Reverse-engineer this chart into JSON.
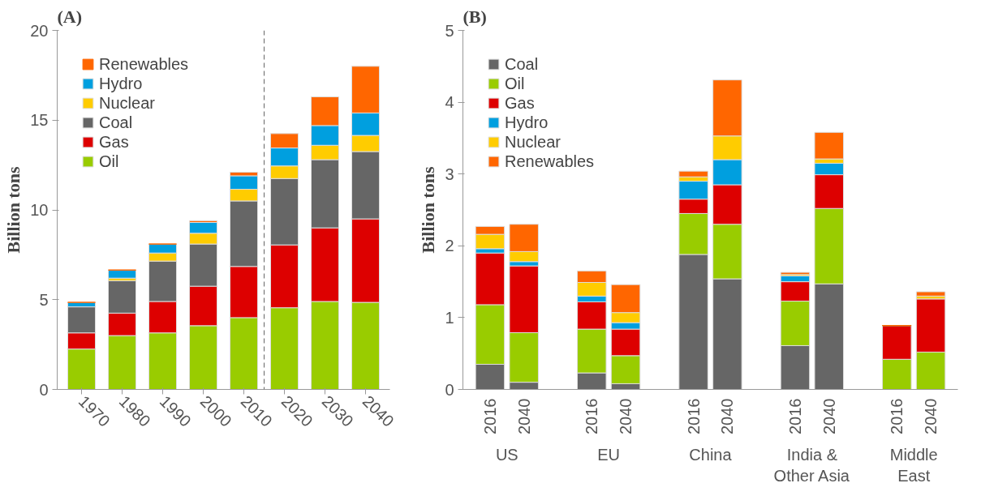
{
  "chart_data": [
    {
      "type": "bar",
      "title": "(A)",
      "ylabel": "Billion tons",
      "stacked": true,
      "x": [
        1970,
        1980,
        1990,
        2000,
        2010,
        2020,
        2030,
        2040
      ],
      "xlim": [
        1964,
        2046
      ],
      "xticks": [
        1970,
        1980,
        1990,
        2000,
        2010,
        2020,
        2030,
        2040
      ],
      "ylim": [
        0,
        20
      ],
      "yticks": [
        0,
        5,
        10,
        15,
        20
      ],
      "grid": false,
      "legend": "top left",
      "ref_lines": [
        {
          "axis": "x",
          "value": 2015,
          "color": "#666666",
          "line_style": "dashed"
        }
      ],
      "series": [
        {
          "name": "Oil",
          "color": "#99cc00",
          "values": [
            2.25,
            3.0,
            3.15,
            3.55,
            4.0,
            4.55,
            4.9,
            4.85
          ]
        },
        {
          "name": "Gas",
          "color": "#dd0000",
          "values": [
            0.9,
            1.25,
            1.75,
            2.2,
            2.85,
            3.5,
            4.1,
            4.65
          ]
        },
        {
          "name": "Coal",
          "color": "#666666",
          "values": [
            1.45,
            1.8,
            2.25,
            2.35,
            3.65,
            3.7,
            3.8,
            3.75
          ]
        },
        {
          "name": "Nuclear",
          "color": "#ffcc00",
          "values": [
            null,
            0.15,
            0.45,
            0.6,
            0.65,
            0.7,
            0.8,
            0.9
          ]
        },
        {
          "name": "Hydro",
          "color": "#009fdf",
          "values": [
            0.25,
            0.45,
            0.5,
            0.6,
            0.75,
            1.0,
            1.1,
            1.25
          ]
        },
        {
          "name": "Renewables",
          "color": "#ff6600",
          "values": [
            0,
            0,
            0,
            0.1,
            0.2,
            0.8,
            1.6,
            2.6
          ]
        }
      ]
    },
    {
      "type": "bar",
      "title": "(B)",
      "ylabel": "Billion tons",
      "stacked": true,
      "categories": [
        "2016",
        "2040",
        "2016",
        "2040",
        "2016",
        "2040",
        "2016",
        "2040",
        "2016",
        "2040"
      ],
      "annotations": [
        "US",
        "EU",
        "China",
        "India & Other Asia",
        "Middle East"
      ],
      "ylim": [
        0,
        5
      ],
      "yticks": [
        0,
        1,
        2,
        3,
        4,
        5
      ],
      "grid": false,
      "legend": "top left",
      "series": [
        {
          "name": "Coal",
          "color": "#666666",
          "values": [
            0.35,
            0.1,
            0.23,
            0.08,
            1.88,
            1.54,
            0.61,
            1.47,
            0,
            0
          ]
        },
        {
          "name": "Oil",
          "color": "#99cc00",
          "values": [
            0.83,
            0.69,
            0.61,
            0.39,
            0.57,
            0.76,
            0.62,
            1.05,
            0.42,
            0.52
          ]
        },
        {
          "name": "Gas",
          "color": "#dd0000",
          "values": [
            0.72,
            0.93,
            0.38,
            0.37,
            0.2,
            0.55,
            0.27,
            0.47,
            0.47,
            0.74
          ]
        },
        {
          "name": "Hydro",
          "color": "#009fdf",
          "values": [
            0.06,
            0.06,
            0.08,
            0.09,
            0.25,
            0.35,
            0.08,
            0.16,
            0,
            null
          ]
        },
        {
          "name": "Nuclear",
          "color": "#ffcc00",
          "values": [
            0.2,
            0.14,
            0.19,
            0.14,
            0.06,
            0.33,
            0.02,
            0.06,
            0,
            0.04
          ]
        },
        {
          "name": "Renewables",
          "color": "#ff6600",
          "values": [
            0.11,
            0.38,
            0.16,
            0.39,
            0.08,
            0.78,
            0.03,
            0.37,
            0,
            0.06
          ]
        }
      ]
    }
  ]
}
